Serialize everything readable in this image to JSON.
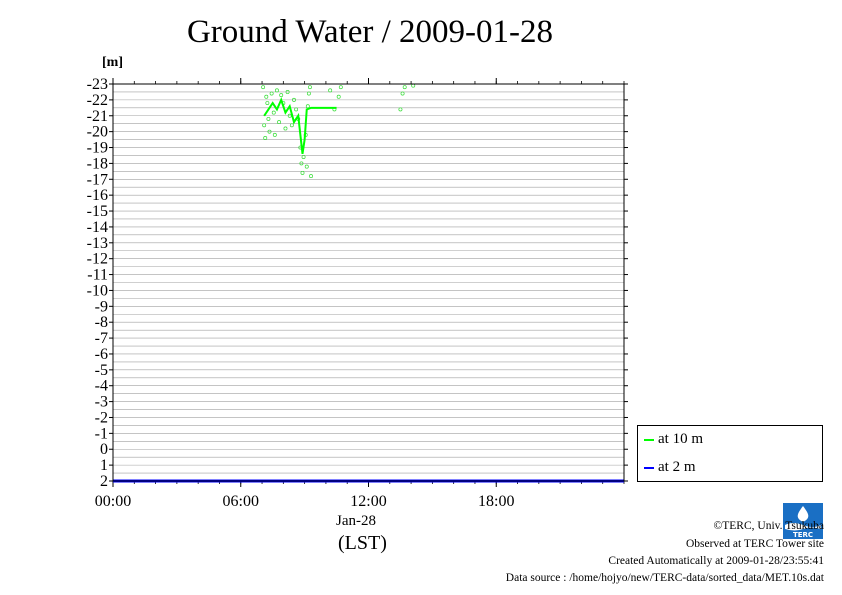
{
  "title": "Ground Water / 2009-01-28",
  "unit_label": "[m]",
  "date_label": "Jan-28",
  "timezone_label": "(LST)",
  "legend": [
    {
      "label": "at 10 m",
      "color": "#00ff00"
    },
    {
      "label": "at 2 m",
      "color": "#0000ff"
    }
  ],
  "footer": {
    "copyright": "©TERC, Univ. Tsukuba",
    "observed": "Observed at TERC Tower site",
    "created": "Created Automatically at 2009-01-28/23:55:41",
    "source": "Data source : /home/hojyo/new/TERC-data/sorted_data/MET.10s.dat"
  },
  "logo_text": "TERC",
  "chart_data": {
    "type": "line",
    "title": "Ground Water / 2009-01-28",
    "ylabel": "[m]",
    "xlabel": "(LST)",
    "ylim": [
      2,
      -23
    ],
    "y_ticks": [
      "-23",
      "-22",
      "-21",
      "-20",
      "-19",
      "-18",
      "-17",
      "-16",
      "-15",
      "-14",
      "-13",
      "-12",
      "-11",
      "-10",
      "-9",
      "-8",
      "-7",
      "-6",
      "-5",
      "-4",
      "-3",
      "-2",
      "-1",
      "0",
      "1",
      "2"
    ],
    "x_ticks": [
      "00:00",
      "06:00",
      "12:00",
      "18:00"
    ],
    "x_tick_hours": [
      0,
      6,
      12,
      18
    ],
    "xlim_hours": [
      0,
      24
    ],
    "grid": true,
    "legend_position": "right",
    "series": [
      {
        "name": "at 10 m",
        "color": "#00ff00",
        "x_hours": [
          7.1,
          7.3,
          7.5,
          7.7,
          7.9,
          8.1,
          8.3,
          8.5,
          8.7,
          8.9,
          9.0,
          9.1,
          9.3,
          9.5,
          10.0,
          10.5
        ],
        "y": [
          -21.0,
          -21.4,
          -21.8,
          -21.4,
          -22.0,
          -21.2,
          -21.6,
          -20.6,
          -21.0,
          -18.6,
          -19.5,
          -21.4,
          -21.5,
          -21.5,
          -21.5,
          -21.5
        ]
      },
      {
        "name": "at 2 m",
        "color": "#0000ff",
        "x_hours": [
          0,
          24
        ],
        "y": [
          2,
          2
        ]
      }
    ],
    "scatter_at_10m": {
      "x_hours": [
        7.05,
        7.1,
        7.15,
        7.2,
        7.25,
        7.3,
        7.35,
        7.45,
        7.55,
        7.6,
        7.7,
        7.8,
        7.9,
        8.0,
        8.1,
        8.2,
        8.3,
        8.4,
        8.5,
        8.6,
        8.7,
        8.8,
        8.85,
        8.9,
        8.95,
        9.05,
        9.1,
        9.15,
        9.2,
        9.25,
        9.3,
        10.2,
        10.4,
        10.6,
        10.7,
        13.5,
        13.6,
        13.7,
        14.1
      ],
      "y": [
        -22.8,
        -20.4,
        -19.6,
        -22.2,
        -21.8,
        -20.8,
        -20.0,
        -22.4,
        -21.2,
        -19.8,
        -22.6,
        -20.6,
        -22.3,
        -21.8,
        -20.2,
        -22.5,
        -21.0,
        -20.4,
        -22.0,
        -21.4,
        -20.8,
        -19.0,
        -18.0,
        -17.4,
        -18.4,
        -19.8,
        -17.8,
        -21.6,
        -22.4,
        -22.8,
        -17.2,
        -22.6,
        -21.4,
        -22.2,
        -22.8,
        -21.4,
        -22.4,
        -22.8,
        -22.9
      ]
    }
  }
}
